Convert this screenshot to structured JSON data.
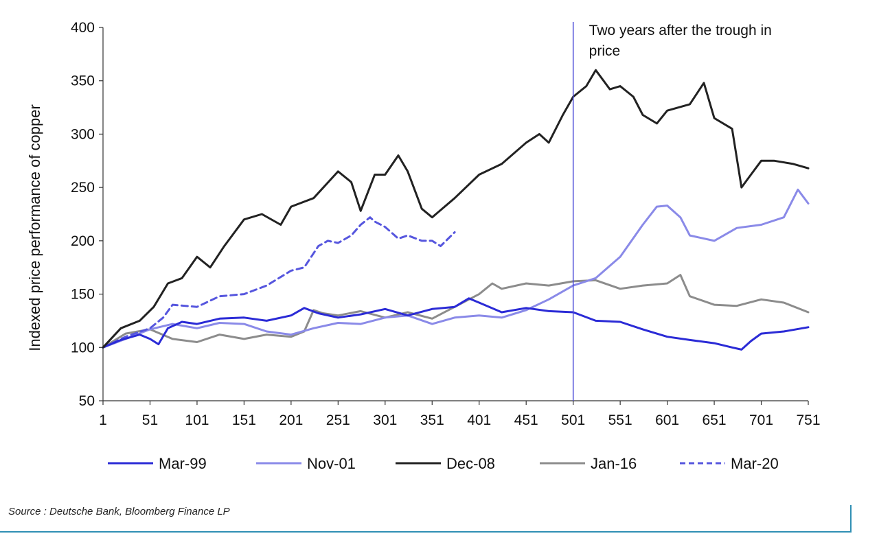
{
  "chart_data": {
    "type": "line",
    "title": "",
    "xlabel": "",
    "ylabel": "Indexed price performance of copper",
    "xlim": [
      1,
      751
    ],
    "ylim": [
      50,
      400
    ],
    "x_ticks": [
      1,
      51,
      101,
      151,
      201,
      251,
      301,
      351,
      401,
      451,
      501,
      551,
      601,
      651,
      701,
      751
    ],
    "y_ticks": [
      50,
      100,
      150,
      200,
      250,
      300,
      350,
      400
    ],
    "grid": false,
    "legend_position": "bottom",
    "annotation": {
      "x": 501,
      "lines": [
        "Two years after the trough in",
        "price"
      ]
    },
    "series": [
      {
        "name": "Mar-99",
        "color": "#2b2bd6",
        "dashed": false,
        "x": [
          1,
          20,
          40,
          51,
          60,
          70,
          85,
          101,
          125,
          151,
          175,
          201,
          215,
          230,
          251,
          275,
          301,
          325,
          351,
          375,
          390,
          401,
          425,
          451,
          475,
          501,
          525,
          551,
          575,
          601,
          625,
          651,
          670,
          680,
          690,
          701,
          725,
          751
        ],
        "values": [
          100,
          107,
          112,
          108,
          103,
          118,
          124,
          122,
          127,
          128,
          125,
          130,
          137,
          132,
          128,
          131,
          136,
          130,
          136,
          138,
          146,
          142,
          133,
          137,
          134,
          133,
          125,
          124,
          117,
          110,
          107,
          104,
          100,
          98,
          106,
          113,
          115,
          119
        ]
      },
      {
        "name": "Nov-01",
        "color": "#8a8ae8",
        "dashed": false,
        "x": [
          1,
          25,
          51,
          75,
          101,
          125,
          151,
          175,
          201,
          225,
          251,
          275,
          301,
          325,
          351,
          375,
          401,
          425,
          451,
          475,
          501,
          525,
          551,
          575,
          590,
          601,
          615,
          625,
          651,
          675,
          701,
          725,
          740,
          751
        ],
        "values": [
          100,
          108,
          117,
          122,
          118,
          123,
          122,
          115,
          112,
          118,
          123,
          122,
          128,
          130,
          122,
          128,
          130,
          128,
          135,
          145,
          158,
          165,
          185,
          215,
          232,
          233,
          222,
          205,
          200,
          212,
          215,
          222,
          248,
          235
        ]
      },
      {
        "name": "Dec-08",
        "color": "#222222",
        "dashed": false,
        "x": [
          1,
          20,
          40,
          55,
          70,
          85,
          101,
          115,
          130,
          151,
          170,
          190,
          201,
          225,
          251,
          265,
          275,
          290,
          301,
          315,
          325,
          340,
          351,
          375,
          401,
          425,
          451,
          465,
          475,
          490,
          501,
          515,
          525,
          540,
          551,
          565,
          575,
          590,
          601,
          625,
          640,
          651,
          670,
          680,
          690,
          701,
          715,
          735,
          751
        ],
        "values": [
          100,
          118,
          125,
          138,
          160,
          165,
          185,
          175,
          195,
          220,
          225,
          215,
          232,
          240,
          265,
          255,
          228,
          262,
          262,
          280,
          265,
          230,
          222,
          240,
          262,
          272,
          292,
          300,
          292,
          318,
          335,
          345,
          360,
          342,
          345,
          335,
          318,
          310,
          322,
          328,
          348,
          315,
          305,
          250,
          262,
          275,
          275,
          272,
          268
        ]
      },
      {
        "name": "Jan-16",
        "color": "#8c8c8c",
        "dashed": false,
        "x": [
          1,
          25,
          51,
          75,
          101,
          125,
          151,
          175,
          201,
          215,
          225,
          235,
          251,
          275,
          301,
          325,
          351,
          375,
          401,
          415,
          425,
          451,
          475,
          501,
          525,
          551,
          575,
          601,
          615,
          625,
          651,
          675,
          701,
          725,
          751
        ],
        "values": [
          100,
          113,
          117,
          108,
          105,
          112,
          108,
          112,
          110,
          115,
          135,
          132,
          130,
          134,
          128,
          133,
          127,
          138,
          150,
          160,
          155,
          160,
          158,
          162,
          163,
          155,
          158,
          160,
          168,
          148,
          140,
          139,
          145,
          142,
          133
        ]
      },
      {
        "name": "Mar-20",
        "color": "#5656de",
        "dashed": true,
        "x": [
          1,
          25,
          51,
          65,
          75,
          101,
          125,
          151,
          175,
          201,
          215,
          230,
          240,
          251,
          265,
          275,
          285,
          290,
          301,
          315,
          325,
          340,
          351,
          360,
          375
        ],
        "values": [
          100,
          110,
          118,
          128,
          140,
          138,
          148,
          150,
          158,
          172,
          175,
          195,
          200,
          198,
          205,
          215,
          222,
          218,
          213,
          202,
          205,
          200,
          200,
          195,
          208
        ]
      }
    ]
  },
  "source": "Source : Deutsche Bank, Bloomberg Finance LP"
}
